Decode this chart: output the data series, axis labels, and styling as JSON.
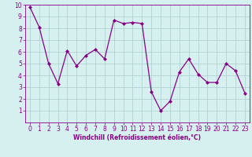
{
  "x": [
    0,
    1,
    2,
    3,
    4,
    5,
    6,
    7,
    8,
    9,
    10,
    11,
    12,
    13,
    14,
    15,
    16,
    17,
    18,
    19,
    20,
    21,
    22,
    23
  ],
  "y": [
    9.8,
    8.1,
    5.0,
    3.3,
    6.1,
    4.8,
    5.7,
    6.2,
    5.4,
    8.7,
    8.4,
    8.5,
    8.4,
    2.6,
    1.0,
    1.8,
    4.3,
    5.4,
    4.1,
    3.4,
    3.4,
    5.0,
    4.4,
    2.5
  ],
  "line_color": "#880088",
  "marker": "D",
  "marker_size": 2.0,
  "line_width": 0.9,
  "bg_color": "#d5f0ee",
  "plot_bg_color": "#d5f0ee",
  "grid_color": "#aacccc",
  "xlabel": "Windchill (Refroidissement éolien,°C)",
  "xlabel_color": "#880088",
  "tick_color": "#880088",
  "spine_color": "#880088",
  "xlim": [
    -0.5,
    23.5
  ],
  "ylim": [
    0,
    10
  ],
  "yticks": [
    1,
    2,
    3,
    4,
    5,
    6,
    7,
    8,
    9,
    10
  ],
  "xticks": [
    0,
    1,
    2,
    3,
    4,
    5,
    6,
    7,
    8,
    9,
    10,
    11,
    12,
    13,
    14,
    15,
    16,
    17,
    18,
    19,
    20,
    21,
    22,
    23
  ],
  "tick_fontsize": 5.5,
  "xlabel_fontsize": 5.5
}
